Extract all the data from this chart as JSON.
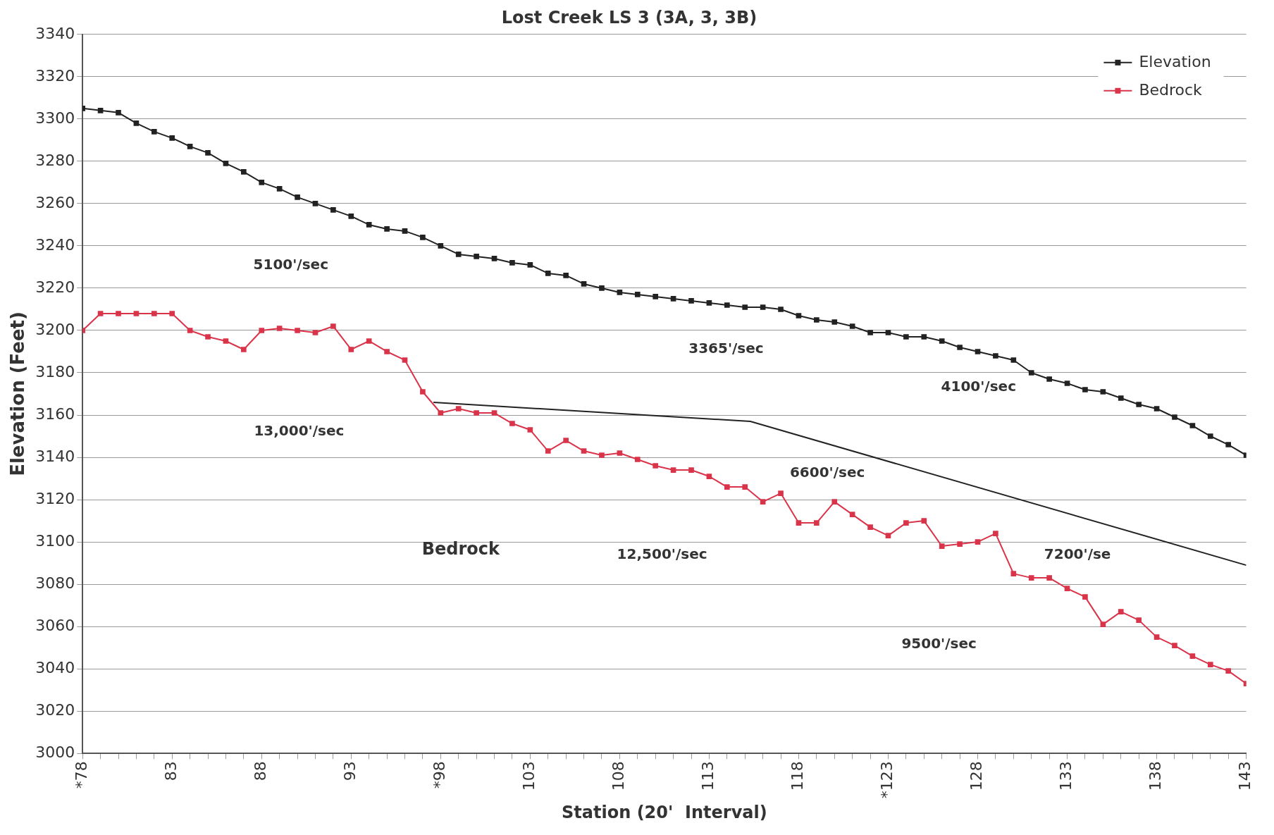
{
  "chart_data": {
    "type": "line",
    "title": "Lost Creek LS 3 (3A, 3, 3B)",
    "xlabel": "Station (20'  Interval)",
    "ylabel": "Elevation (Feet)",
    "xlim": [
      78,
      143
    ],
    "xticks": [
      {
        "value": 78,
        "label": "*78"
      },
      {
        "value": 79,
        "label": null
      },
      {
        "value": 80,
        "label": null
      },
      {
        "value": 81,
        "label": null
      },
      {
        "value": 82,
        "label": null
      },
      {
        "value": 83,
        "label": "83"
      },
      {
        "value": 84,
        "label": null
      },
      {
        "value": 85,
        "label": null
      },
      {
        "value": 86,
        "label": null
      },
      {
        "value": 87,
        "label": null
      },
      {
        "value": 88,
        "label": "88"
      },
      {
        "value": 89,
        "label": null
      },
      {
        "value": 90,
        "label": null
      },
      {
        "value": 91,
        "label": null
      },
      {
        "value": 92,
        "label": null
      },
      {
        "value": 93,
        "label": "93"
      },
      {
        "value": 94,
        "label": null
      },
      {
        "value": 95,
        "label": null
      },
      {
        "value": 96,
        "label": null
      },
      {
        "value": 97,
        "label": null
      },
      {
        "value": 98,
        "label": "*98"
      },
      {
        "value": 99,
        "label": null
      },
      {
        "value": 100,
        "label": null
      },
      {
        "value": 101,
        "label": null
      },
      {
        "value": 102,
        "label": null
      },
      {
        "value": 103,
        "label": "103"
      },
      {
        "value": 104,
        "label": null
      },
      {
        "value": 105,
        "label": null
      },
      {
        "value": 106,
        "label": null
      },
      {
        "value": 107,
        "label": null
      },
      {
        "value": 108,
        "label": "108"
      },
      {
        "value": 109,
        "label": null
      },
      {
        "value": 110,
        "label": null
      },
      {
        "value": 111,
        "label": null
      },
      {
        "value": 112,
        "label": null
      },
      {
        "value": 113,
        "label": "113"
      },
      {
        "value": 114,
        "label": null
      },
      {
        "value": 115,
        "label": null
      },
      {
        "value": 116,
        "label": null
      },
      {
        "value": 117,
        "label": null
      },
      {
        "value": 118,
        "label": "118"
      },
      {
        "value": 119,
        "label": null
      },
      {
        "value": 120,
        "label": null
      },
      {
        "value": 121,
        "label": null
      },
      {
        "value": 122,
        "label": null
      },
      {
        "value": 123,
        "label": "*123"
      },
      {
        "value": 124,
        "label": null
      },
      {
        "value": 125,
        "label": null
      },
      {
        "value": 126,
        "label": null
      },
      {
        "value": 127,
        "label": null
      },
      {
        "value": 128,
        "label": "128"
      },
      {
        "value": 129,
        "label": null
      },
      {
        "value": 130,
        "label": null
      },
      {
        "value": 131,
        "label": null
      },
      {
        "value": 132,
        "label": null
      },
      {
        "value": 133,
        "label": "133"
      },
      {
        "value": 134,
        "label": null
      },
      {
        "value": 135,
        "label": null
      },
      {
        "value": 136,
        "label": null
      },
      {
        "value": 137,
        "label": null
      },
      {
        "value": 138,
        "label": "138"
      },
      {
        "value": 139,
        "label": null
      },
      {
        "value": 140,
        "label": null
      },
      {
        "value": 141,
        "label": null
      },
      {
        "value": 142,
        "label": null
      },
      {
        "value": 143,
        "label": "143"
      }
    ],
    "ylim": [
      3000,
      3340
    ],
    "yticks": [
      3000,
      3020,
      3040,
      3060,
      3080,
      3100,
      3120,
      3140,
      3160,
      3180,
      3200,
      3220,
      3240,
      3260,
      3280,
      3300,
      3320,
      3340
    ],
    "grid": "y",
    "legend": "top right",
    "marker": "square",
    "line_style": "solid",
    "x": [
      78,
      79,
      80,
      81,
      82,
      83,
      84,
      85,
      86,
      87,
      88,
      89,
      90,
      91,
      92,
      93,
      94,
      95,
      96,
      97,
      98,
      99,
      100,
      101,
      102,
      103,
      104,
      105,
      106,
      107,
      108,
      109,
      110,
      111,
      112,
      113,
      114,
      115,
      116,
      117,
      118,
      119,
      120,
      121,
      122,
      123,
      124,
      125,
      126,
      127,
      128,
      129,
      130,
      131,
      132,
      133,
      134,
      135,
      136,
      137,
      138,
      139,
      140,
      141,
      142,
      143
    ],
    "series": [
      {
        "name": "Elevation",
        "color": "#222222",
        "values": [
          3305,
          3304,
          3303,
          3298,
          3294,
          3291,
          3287,
          3284,
          3279,
          3275,
          3270,
          3267,
          3263,
          3260,
          3257,
          3254,
          3250,
          3248,
          3247,
          3244,
          3240,
          3236,
          3235,
          3234,
          3232,
          3231,
          3227,
          3226,
          3222,
          3220,
          3218,
          3217,
          3216,
          3215,
          3214,
          3213,
          3212,
          3211,
          3211,
          3210,
          3207,
          3205,
          3204,
          3202,
          3199,
          3199,
          3197,
          3197,
          3195,
          3192,
          3190,
          3188,
          3186,
          3180,
          3177,
          3175,
          3172,
          3171,
          3168,
          3165,
          3163,
          3159,
          3155,
          3150,
          3146,
          3141
        ]
      },
      {
        "name": "Bedrock",
        "color": "#d9344a",
        "values": [
          3200,
          3208,
          3208,
          3208,
          3208,
          3208,
          3200,
          3197,
          3195,
          3191,
          3200,
          3201,
          3200,
          3199,
          3202,
          3191,
          3195,
          3190,
          3186,
          3171,
          3161,
          3163,
          3161,
          3161,
          3156,
          3153,
          3143,
          3148,
          3143,
          3141,
          3142,
          3139,
          3136,
          3134,
          3134,
          3131,
          3126,
          3126,
          3119,
          3123,
          3109,
          3109,
          3119,
          3113,
          3107,
          3103,
          3109,
          3110,
          3098,
          3099,
          3100,
          3104,
          3085,
          3083,
          3083,
          3078,
          3074,
          3061,
          3067,
          3063,
          3055,
          3051,
          3046,
          3042,
          3039,
          3033
        ]
      },
      {
        "color": "#222222",
        "marker": "none",
        "x": [
          97.6,
          115.3,
          143
        ],
        "values": [
          3166,
          3157,
          3089
        ]
      }
    ],
    "annotations": [
      "5100'/sec",
      "13,000'/sec",
      "Bedrock",
      "3365'/sec",
      "4100'/sec",
      "6600'/sec",
      "12,500'/sec",
      "7200'/se",
      "9500'/sec"
    ]
  }
}
